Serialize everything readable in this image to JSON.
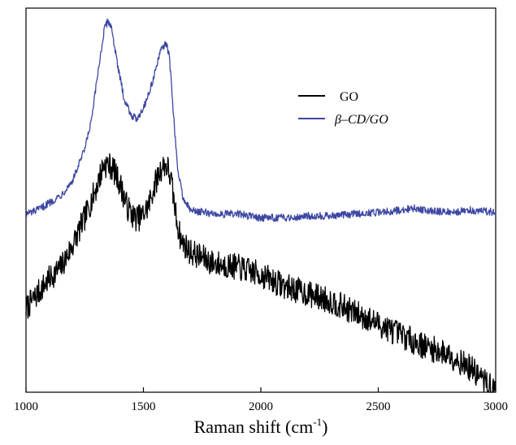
{
  "chart_data": {
    "type": "line",
    "title": "",
    "xlabel": "Raman shift (cm",
    "xlabel_sup": "-1",
    "xlabel_close": ")",
    "ylabel": "",
    "xlim": [
      1000,
      3000
    ],
    "ylim": [
      0,
      100
    ],
    "y_ticks_shown": false,
    "grid": false,
    "legend": "top-right",
    "x_ticks": [
      {
        "value": 1000,
        "label": "1000"
      },
      {
        "value": 1500,
        "label": "1500"
      },
      {
        "value": 2000,
        "label": "2000"
      },
      {
        "value": 2500,
        "label": "2500"
      },
      {
        "value": 3000,
        "label": "3000"
      }
    ],
    "series": [
      {
        "name": "GO",
        "color": "#000000",
        "noise": 3.5,
        "x": [
          1000,
          1050,
          1100,
          1150,
          1200,
          1250,
          1300,
          1330,
          1350,
          1370,
          1400,
          1430,
          1460,
          1490,
          1520,
          1550,
          1575,
          1590,
          1605,
          1620,
          1640,
          1660,
          1700,
          1800,
          1900,
          2000,
          2100,
          2200,
          2300,
          2400,
          2500,
          2600,
          2700,
          2800,
          2900,
          3000
        ],
        "values": [
          22,
          26,
          30,
          33,
          39,
          46,
          54,
          60,
          60,
          59,
          55,
          49,
          46,
          46,
          49,
          55,
          59,
          60,
          59,
          55,
          46,
          40,
          37,
          34,
          33,
          31,
          28,
          26,
          24,
          21,
          18,
          15,
          12,
          10,
          6,
          0
        ]
      },
      {
        "name": "β–CD/GO",
        "color": "#3c47a3",
        "noise": 1.0,
        "x": [
          1000,
          1050,
          1100,
          1150,
          1200,
          1250,
          1280,
          1310,
          1335,
          1350,
          1365,
          1390,
          1420,
          1450,
          1470,
          1500,
          1530,
          1560,
          1580,
          1595,
          1610,
          1625,
          1645,
          1670,
          1700,
          1800,
          1900,
          2000,
          2100,
          2200,
          2300,
          2400,
          2500,
          2600,
          2650,
          2700,
          2800,
          2900,
          3000
        ],
        "values": [
          47,
          48,
          50,
          52,
          56,
          64,
          72,
          86,
          96,
          98,
          96,
          86,
          77,
          73,
          72,
          75,
          80,
          87,
          91,
          92,
          89,
          76,
          59,
          51,
          48,
          47,
          47,
          46,
          46,
          46.5,
          46.5,
          47,
          47.5,
          48,
          48.5,
          48,
          47.5,
          48,
          47.5
        ]
      }
    ]
  }
}
